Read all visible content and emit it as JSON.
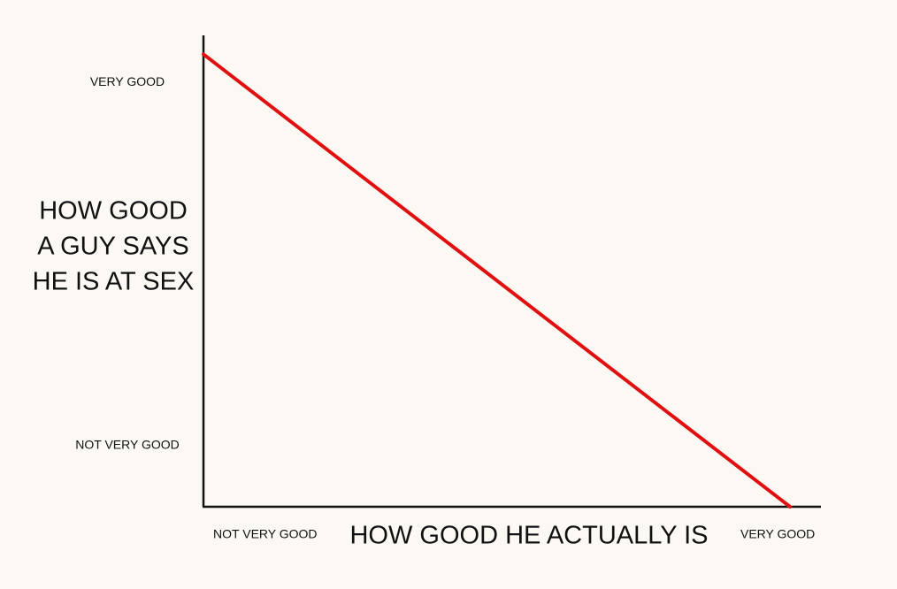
{
  "chart_data": {
    "type": "line",
    "xlabel": "HOW GOOD HE ACTUALLY IS",
    "ylabel": [
      "HOW GOOD",
      "A GUY SAYS",
      "HE IS AT SEX"
    ],
    "x": [
      0,
      9.5
    ],
    "values": [
      9.6,
      0
    ],
    "color": "#e01010",
    "xlim": [
      0,
      10
    ],
    "ylim": [
      0,
      10
    ],
    "xticks": [
      {
        "value": 1,
        "label": "NOT VERY GOOD"
      },
      {
        "value": 9.3,
        "label": "VERY GOOD"
      }
    ],
    "yticks": [
      {
        "value": 1.3,
        "label": "NOT VERY GOOD"
      },
      {
        "value": 9,
        "label": "VERY GOOD"
      }
    ],
    "grid": false
  }
}
